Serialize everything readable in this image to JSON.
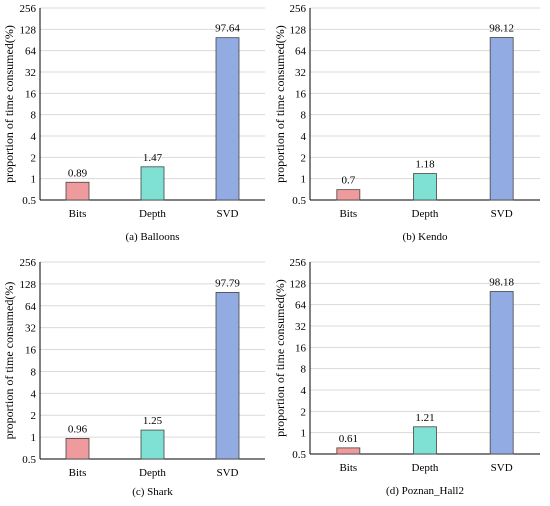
{
  "colors": {
    "bits": "#ef9a9c",
    "depth": "#7fe0d4",
    "svd": "#93abe3",
    "grid": "#d9d9d9",
    "axis": "#000000"
  },
  "chart_data": [
    {
      "type": "bar",
      "caption": "(a) Balloons",
      "ylabel": "proportion of time consumed(%)",
      "yscale": "log2",
      "ylim": [
        0.5,
        256
      ],
      "yticks": [
        "0.5",
        "1",
        "2",
        "4",
        "8",
        "16",
        "32",
        "64",
        "128",
        "256"
      ],
      "categories": [
        "Bits",
        "Depth",
        "SVD"
      ],
      "values": [
        0.89,
        1.47,
        97.64
      ],
      "labels": [
        "0.89",
        "1.47",
        "97.64"
      ],
      "grid": "horizontal"
    },
    {
      "type": "bar",
      "caption": "(b) Kendo",
      "ylabel": "proportion of time consumed(%)",
      "yscale": "log2",
      "ylim": [
        0.5,
        256
      ],
      "yticks": [
        "0.5",
        "1",
        "2",
        "4",
        "8",
        "16",
        "32",
        "64",
        "128",
        "256"
      ],
      "categories": [
        "Bits",
        "Depth",
        "SVD"
      ],
      "values": [
        0.7,
        1.18,
        98.12
      ],
      "labels": [
        "0.7",
        "1.18",
        "98.12"
      ],
      "grid": "horizontal"
    },
    {
      "type": "bar",
      "caption": "(c) Shark",
      "ylabel": "proportion of time consumed(%)",
      "yscale": "log2",
      "ylim": [
        0.5,
        256
      ],
      "yticks": [
        "0.5",
        "1",
        "2",
        "4",
        "8",
        "16",
        "32",
        "64",
        "128",
        "256"
      ],
      "categories": [
        "Bits",
        "Depth",
        "SVD"
      ],
      "values": [
        0.96,
        1.25,
        97.79
      ],
      "labels": [
        "0.96",
        "1.25",
        "97.79"
      ],
      "grid": "horizontal"
    },
    {
      "type": "bar",
      "caption": "(d) Poznan_Hall2",
      "ylabel": "proportion of time consumed(%)",
      "yscale": "log2",
      "ylim": [
        0.5,
        256
      ],
      "yticks": [
        "0.5",
        "1",
        "2",
        "4",
        "8",
        "16",
        "32",
        "64",
        "128",
        "256"
      ],
      "categories": [
        "Bits",
        "Depth",
        "SVD"
      ],
      "values": [
        0.61,
        1.21,
        98.18
      ],
      "labels": [
        "0.61",
        "1.21",
        "98.18"
      ],
      "grid": "horizontal"
    }
  ]
}
